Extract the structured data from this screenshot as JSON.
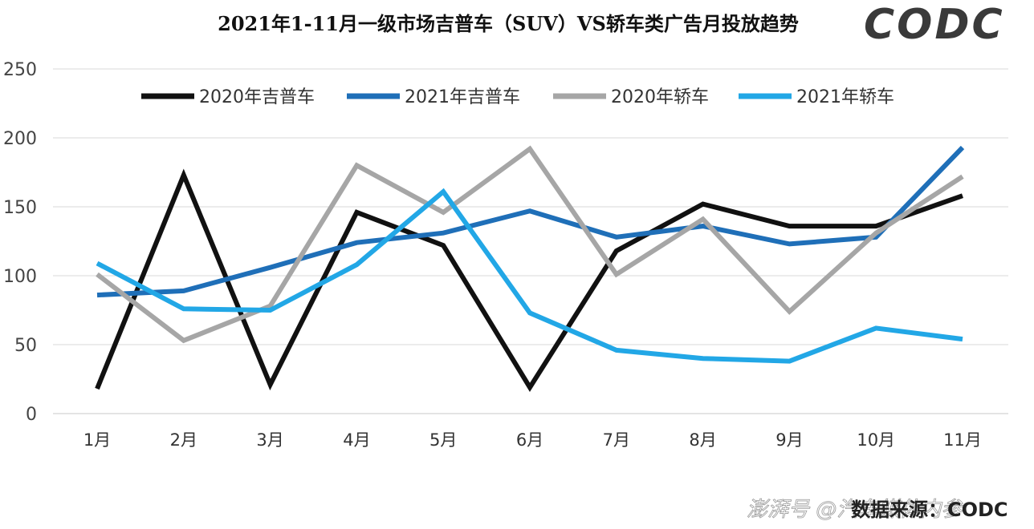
{
  "chart_data": {
    "type": "line",
    "title": "2021年1-11月一级市场吉普车（SUV）VS轿车类广告月投放趋势",
    "categories": [
      "1月",
      "2月",
      "3月",
      "4月",
      "5月",
      "6月",
      "7月",
      "8月",
      "9月",
      "10月",
      "11月"
    ],
    "yticks": [
      "0",
      "50",
      "100",
      "150",
      "200",
      "250"
    ],
    "ylim": [
      0,
      250
    ],
    "grid": true,
    "legend_position": "top",
    "series": [
      {
        "name": "2020年吉普车",
        "color": "#111111",
        "values": [
          18,
          173,
          21,
          146,
          122,
          19,
          118,
          152,
          136,
          136,
          158
        ]
      },
      {
        "name": "2021年吉普车",
        "color": "#1f6fb8",
        "values": [
          86,
          89,
          106,
          124,
          131,
          147,
          128,
          136,
          123,
          128,
          193
        ]
      },
      {
        "name": "2020年轿车",
        "color": "#a6a6a6",
        "values": [
          101,
          53,
          78,
          180,
          146,
          192,
          101,
          141,
          74,
          131,
          172
        ]
      },
      {
        "name": "2021年轿车",
        "color": "#22a7e6",
        "values": [
          109,
          76,
          75,
          108,
          161,
          73,
          46,
          40,
          38,
          62,
          54
        ]
      }
    ]
  },
  "logo": {
    "text": "CODC"
  },
  "source": {
    "text": "数据来源：CODC"
  },
  "watermark": {
    "text": "澎湃号 @汽车媒体内参"
  }
}
